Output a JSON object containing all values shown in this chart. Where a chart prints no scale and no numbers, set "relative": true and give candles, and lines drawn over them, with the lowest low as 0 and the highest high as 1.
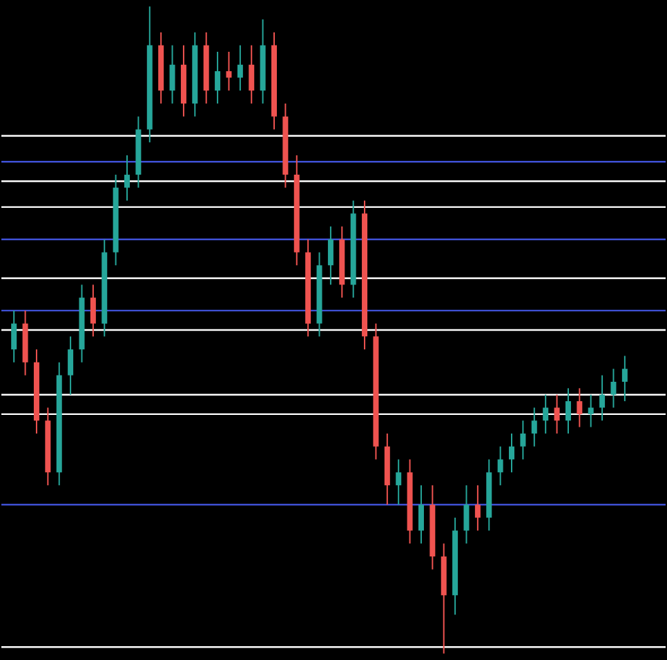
{
  "chart_data": {
    "type": "candlestick",
    "relative": true,
    "categories": [
      null,
      null,
      null,
      null,
      null,
      null,
      null,
      null,
      null,
      null,
      null,
      null,
      null,
      null,
      null,
      null,
      null,
      null,
      null,
      null,
      null,
      null,
      null,
      null,
      null,
      null,
      null,
      null,
      null,
      null,
      null,
      null,
      null,
      null,
      null,
      null,
      null,
      null,
      null,
      null,
      null,
      null,
      null,
      null,
      null,
      null,
      null,
      null,
      null,
      null,
      null,
      null,
      null,
      null,
      null
    ],
    "ohlc": [
      [
        0.47,
        0.53,
        0.45,
        0.51
      ],
      [
        0.51,
        0.53,
        0.43,
        0.45
      ],
      [
        0.45,
        0.47,
        0.34,
        0.36
      ],
      [
        0.36,
        0.38,
        0.26,
        0.28
      ],
      [
        0.28,
        0.45,
        0.26,
        0.43
      ],
      [
        0.43,
        0.49,
        0.4,
        0.47
      ],
      [
        0.47,
        0.57,
        0.45,
        0.55
      ],
      [
        0.55,
        0.57,
        0.49,
        0.51
      ],
      [
        0.51,
        0.64,
        0.49,
        0.62
      ],
      [
        0.62,
        0.74,
        0.6,
        0.72
      ],
      [
        0.72,
        0.77,
        0.7,
        0.74
      ],
      [
        0.74,
        0.83,
        0.72,
        0.81
      ],
      [
        0.81,
        1.0,
        0.79,
        0.94
      ],
      [
        0.94,
        0.96,
        0.85,
        0.87
      ],
      [
        0.87,
        0.94,
        0.85,
        0.91
      ],
      [
        0.91,
        0.94,
        0.83,
        0.85
      ],
      [
        0.85,
        0.96,
        0.83,
        0.94
      ],
      [
        0.94,
        0.96,
        0.85,
        0.87
      ],
      [
        0.87,
        0.93,
        0.85,
        0.9
      ],
      [
        0.9,
        0.93,
        0.87,
        0.89
      ],
      [
        0.89,
        0.94,
        0.87,
        0.91
      ],
      [
        0.91,
        0.94,
        0.85,
        0.87
      ],
      [
        0.87,
        0.98,
        0.85,
        0.94
      ],
      [
        0.94,
        0.96,
        0.81,
        0.83
      ],
      [
        0.83,
        0.85,
        0.72,
        0.74
      ],
      [
        0.74,
        0.77,
        0.6,
        0.62
      ],
      [
        0.62,
        0.64,
        0.49,
        0.51
      ],
      [
        0.51,
        0.62,
        0.49,
        0.6
      ],
      [
        0.6,
        0.66,
        0.57,
        0.64
      ],
      [
        0.64,
        0.66,
        0.55,
        0.57
      ],
      [
        0.57,
        0.7,
        0.55,
        0.68
      ],
      [
        0.68,
        0.7,
        0.47,
        0.49
      ],
      [
        0.49,
        0.51,
        0.3,
        0.32
      ],
      [
        0.32,
        0.34,
        0.23,
        0.26
      ],
      [
        0.26,
        0.3,
        0.23,
        0.28
      ],
      [
        0.28,
        0.3,
        0.17,
        0.19
      ],
      [
        0.19,
        0.26,
        0.17,
        0.23
      ],
      [
        0.23,
        0.26,
        0.13,
        0.15
      ],
      [
        0.15,
        0.17,
        0.0,
        0.09
      ],
      [
        0.09,
        0.21,
        0.06,
        0.19
      ],
      [
        0.19,
        0.26,
        0.17,
        0.23
      ],
      [
        0.23,
        0.26,
        0.19,
        0.21
      ],
      [
        0.21,
        0.3,
        0.19,
        0.28
      ],
      [
        0.28,
        0.32,
        0.26,
        0.3
      ],
      [
        0.3,
        0.34,
        0.28,
        0.32
      ],
      [
        0.32,
        0.36,
        0.3,
        0.34
      ],
      [
        0.34,
        0.38,
        0.32,
        0.36
      ],
      [
        0.36,
        0.4,
        0.34,
        0.38
      ],
      [
        0.38,
        0.4,
        0.34,
        0.36
      ],
      [
        0.36,
        0.41,
        0.34,
        0.39
      ],
      [
        0.39,
        0.41,
        0.35,
        0.37
      ],
      [
        0.37,
        0.4,
        0.35,
        0.38
      ],
      [
        0.38,
        0.43,
        0.36,
        0.4
      ],
      [
        0.4,
        0.44,
        0.38,
        0.42
      ],
      [
        0.42,
        0.46,
        0.39,
        0.44
      ]
    ],
    "colors": [
      "#26a69a",
      "#ef5350",
      "#ef5350",
      "#ef5350",
      "#26a69a",
      "#26a69a",
      "#26a69a",
      "#ef5350",
      "#26a69a",
      "#26a69a",
      "#26a69a",
      "#26a69a",
      "#26a69a",
      "#ef5350",
      "#26a69a",
      "#ef5350",
      "#26a69a",
      "#ef5350",
      "#26a69a",
      "#ef5350",
      "#26a69a",
      "#ef5350",
      "#26a69a",
      "#ef5350",
      "#ef5350",
      "#ef5350",
      "#ef5350",
      "#26a69a",
      "#26a69a",
      "#ef5350",
      "#26a69a",
      "#ef5350",
      "#ef5350",
      "#ef5350",
      "#26a69a",
      "#ef5350",
      "#26a69a",
      "#ef5350",
      "#ef5350",
      "#26a69a",
      "#26a69a",
      "#ef5350",
      "#26a69a",
      "#26a69a",
      "#26a69a",
      "#26a69a",
      "#26a69a",
      "#26a69a",
      "#ef5350",
      "#26a69a",
      "#ef5350",
      "#26a69a",
      "#26a69a",
      "#26a69a",
      "#26a69a"
    ],
    "ref_lines": [
      {
        "axis": "y",
        "value": 0.8,
        "color": "#ffffff"
      },
      {
        "axis": "y",
        "value": 0.73,
        "color": "#ffffff"
      },
      {
        "axis": "y",
        "value": 0.69,
        "color": "#ffffff"
      },
      {
        "axis": "y",
        "value": 0.58,
        "color": "#ffffff"
      },
      {
        "axis": "y",
        "value": 0.5,
        "color": "#ffffff"
      },
      {
        "axis": "y",
        "value": 0.4,
        "color": "#ffffff"
      },
      {
        "axis": "y",
        "value": 0.37,
        "color": "#ffffff"
      },
      {
        "axis": "y",
        "value": 0.01,
        "color": "#ffffff"
      },
      {
        "axis": "y",
        "value": 0.76,
        "color": "#3f51d6"
      },
      {
        "axis": "y",
        "value": 0.64,
        "color": "#3f51d6"
      },
      {
        "axis": "y",
        "value": 0.53,
        "color": "#3f51d6"
      },
      {
        "axis": "y",
        "value": 0.23,
        "color": "#3f51d6"
      }
    ]
  }
}
